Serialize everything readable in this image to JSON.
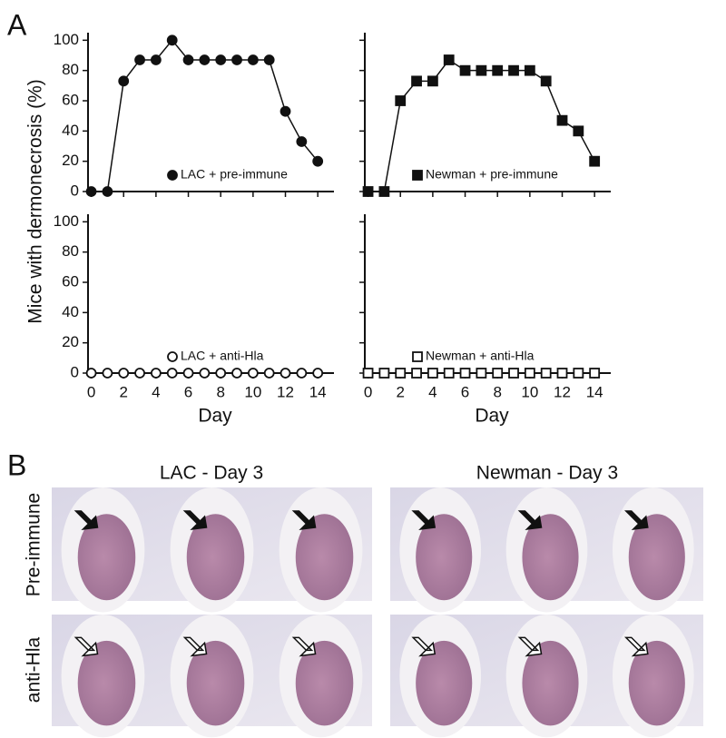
{
  "panel_labels": [
    "A",
    "B"
  ],
  "chart_data": [
    {
      "type": "line",
      "ylabel": "Mice with dermonecrosis (%)",
      "marker": "circle",
      "filled": true,
      "x": [
        0,
        1,
        2,
        3,
        4,
        5,
        6,
        7,
        8,
        9,
        10,
        11,
        12,
        13,
        14
      ],
      "series": [
        {
          "name": "LAC + pre-immune",
          "color": "#111111",
          "values": [
            0,
            0,
            73,
            87,
            87,
            100,
            87,
            87,
            87,
            87,
            87,
            87,
            53,
            33,
            20
          ]
        }
      ],
      "xlim": [
        -0.2,
        15
      ],
      "ylim": [
        0,
        105
      ],
      "xticks": [
        0,
        2,
        4,
        6,
        8,
        10,
        12,
        14
      ],
      "yticks": [
        0,
        20,
        40,
        60,
        80,
        100
      ],
      "show_xtick_labels": false,
      "show_ytick_labels": true
    },
    {
      "type": "line",
      "marker": "square",
      "filled": true,
      "x": [
        0,
        1,
        2,
        3,
        4,
        5,
        6,
        7,
        8,
        9,
        10,
        11,
        12,
        13,
        14
      ],
      "series": [
        {
          "name": "Newman + pre-immune",
          "color": "#111111",
          "values": [
            0,
            0,
            60,
            73,
            73,
            87,
            80,
            80,
            80,
            80,
            80,
            73,
            47,
            40,
            20
          ]
        }
      ],
      "xlim": [
        -0.2,
        15
      ],
      "ylim": [
        0,
        105
      ],
      "xticks": [
        0,
        2,
        4,
        6,
        8,
        10,
        12,
        14
      ],
      "yticks": [
        0,
        20,
        40,
        60,
        80,
        100
      ],
      "show_xtick_labels": false,
      "show_ytick_labels": false
    },
    {
      "type": "line",
      "xlabel": "Day",
      "marker": "circle",
      "filled": false,
      "x": [
        0,
        1,
        2,
        3,
        4,
        5,
        6,
        7,
        8,
        9,
        10,
        11,
        12,
        13,
        14
      ],
      "series": [
        {
          "name": "LAC + anti-Hla",
          "color": "#111111",
          "values": [
            0,
            0,
            0,
            0,
            0,
            0,
            0,
            0,
            0,
            0,
            0,
            0,
            0,
            0,
            0
          ]
        }
      ],
      "xlim": [
        -0.2,
        15
      ],
      "ylim": [
        0,
        105
      ],
      "xticks": [
        0,
        2,
        4,
        6,
        8,
        10,
        12,
        14
      ],
      "yticks": [
        0,
        20,
        40,
        60,
        80,
        100
      ],
      "show_xtick_labels": true,
      "show_ytick_labels": true
    },
    {
      "type": "line",
      "xlabel": "Day",
      "marker": "square",
      "filled": false,
      "x": [
        0,
        1,
        2,
        3,
        4,
        5,
        6,
        7,
        8,
        9,
        10,
        11,
        12,
        13,
        14
      ],
      "series": [
        {
          "name": "Newman + anti-Hla",
          "color": "#111111",
          "values": [
            0,
            0,
            0,
            0,
            0,
            0,
            0,
            0,
            0,
            0,
            0,
            0,
            0,
            0,
            0
          ]
        }
      ],
      "xlim": [
        -0.2,
        15
      ],
      "ylim": [
        0,
        105
      ],
      "xticks": [
        0,
        2,
        4,
        6,
        8,
        10,
        12,
        14
      ],
      "yticks": [
        0,
        20,
        40,
        60,
        80,
        100
      ],
      "show_xtick_labels": true,
      "show_ytick_labels": false
    }
  ],
  "photos": {
    "columns": [
      "LAC - Day 3",
      "Newman - Day 3"
    ],
    "rows": [
      "Pre-immune",
      "anti-Hla"
    ]
  }
}
